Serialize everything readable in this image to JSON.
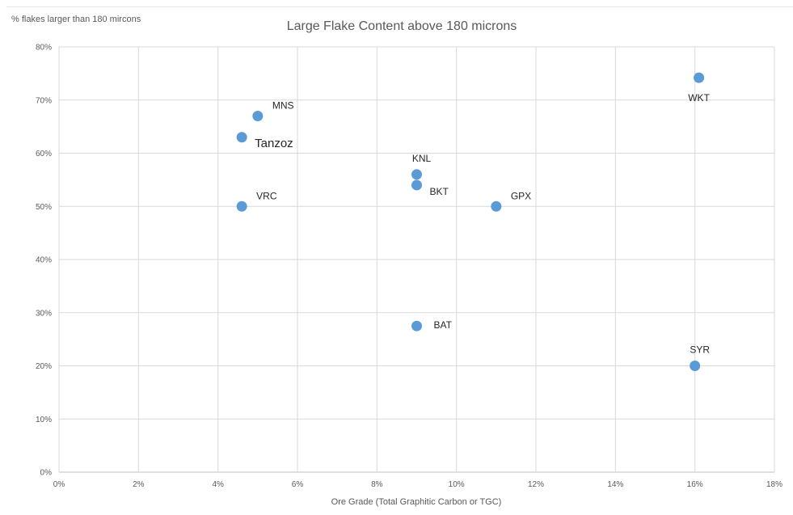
{
  "chart_data": {
    "type": "scatter",
    "title": "Large Flake Content above 180 microns",
    "xlabel": "Ore Grade (Total Graphitic Carbon or TGC)",
    "ylabel": "% flakes larger than 180 mircons",
    "xlim": [
      0,
      18
    ],
    "ylim": [
      0,
      80
    ],
    "x_ticks": [
      "0%",
      "2%",
      "4%",
      "6%",
      "8%",
      "10%",
      "12%",
      "14%",
      "16%",
      "18%"
    ],
    "y_ticks": [
      "0%",
      "10%",
      "20%",
      "30%",
      "40%",
      "50%",
      "60%",
      "70%",
      "80%"
    ],
    "grid": true,
    "marker_color": "#5b9bd5",
    "points": [
      {
        "label": "MNS",
        "x": 5.0,
        "y": 67,
        "label_pos": "upper-right",
        "emphasis": false
      },
      {
        "label": "Tanzoz",
        "x": 4.6,
        "y": 63,
        "label_pos": "lower-right",
        "emphasis": true
      },
      {
        "label": "VRC",
        "x": 4.6,
        "y": 50,
        "label_pos": "upper-right",
        "emphasis": false
      },
      {
        "label": "KNL",
        "x": 9.0,
        "y": 56,
        "label_pos": "above",
        "emphasis": false
      },
      {
        "label": "BKT",
        "x": 9.0,
        "y": 54,
        "label_pos": "lower-right",
        "emphasis": false
      },
      {
        "label": "GPX",
        "x": 11.0,
        "y": 50,
        "label_pos": "upper-right",
        "emphasis": false
      },
      {
        "label": "BAT",
        "x": 9.0,
        "y": 27.5,
        "label_pos": "right",
        "emphasis": false
      },
      {
        "label": "WKT",
        "x": 16.1,
        "y": 74.2,
        "label_pos": "below",
        "emphasis": false
      },
      {
        "label": "SYR",
        "x": 16.0,
        "y": 20,
        "label_pos": "above",
        "emphasis": false
      }
    ]
  }
}
